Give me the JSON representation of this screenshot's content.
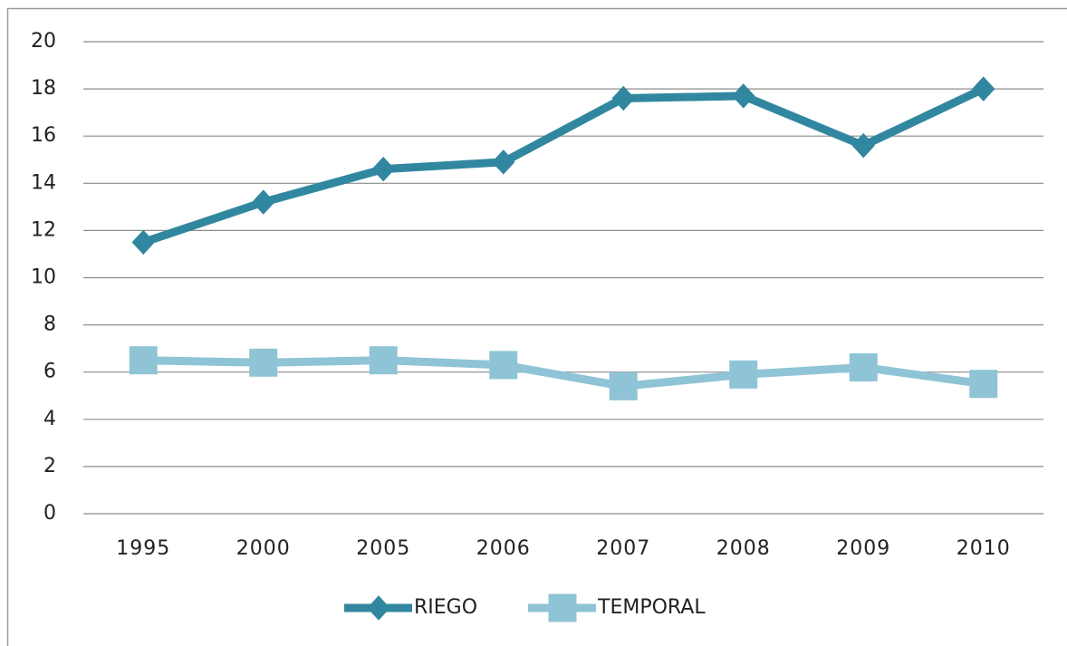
{
  "chart_data": {
    "type": "line",
    "categories": [
      "1995",
      "2000",
      "2005",
      "2006",
      "2007",
      "2008",
      "2009",
      "2010"
    ],
    "series": [
      {
        "name": "RIEGO",
        "color": "#31879f",
        "marker": "diamond",
        "values": [
          11.5,
          13.2,
          14.6,
          14.9,
          17.6,
          17.7,
          15.6,
          18.0
        ]
      },
      {
        "name": "TEMPORAL",
        "color": "#8fc4d6",
        "marker": "square",
        "values": [
          6.5,
          6.4,
          6.5,
          6.3,
          5.4,
          5.9,
          6.2,
          5.5
        ]
      }
    ],
    "ylim": [
      0,
      20
    ],
    "yticks": [
      0,
      2,
      4,
      6,
      8,
      10,
      12,
      14,
      16,
      18,
      20
    ],
    "grid": true,
    "legend": "bottom"
  }
}
